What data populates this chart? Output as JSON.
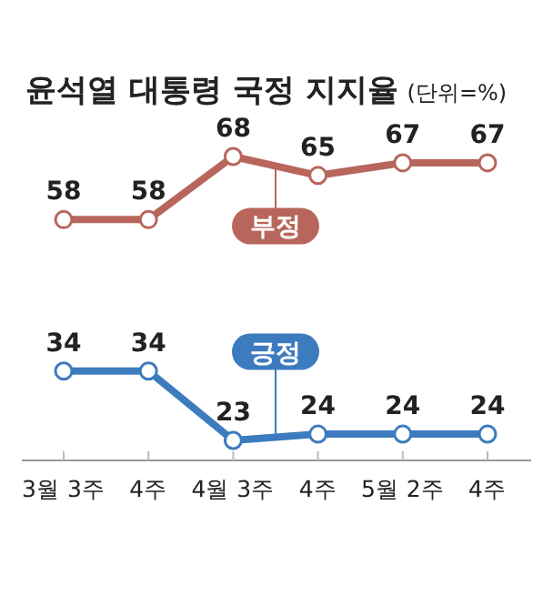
{
  "chart_data": {
    "type": "line",
    "title": "윤석열 대통령 국정 지지율",
    "subtitle": "(단위=%)",
    "categories": [
      "3월 3주",
      "4주",
      "4월 3주",
      "4주",
      "5월 2주",
      "4주"
    ],
    "series": [
      {
        "name": "부정",
        "color": "#b8665c",
        "values": [
          58,
          58,
          68,
          65,
          67,
          67
        ]
      },
      {
        "name": "긍정",
        "color": "#3d7bbf",
        "values": [
          34,
          34,
          23,
          24,
          24,
          24
        ]
      }
    ],
    "data_labels": true,
    "marker": "circle"
  }
}
